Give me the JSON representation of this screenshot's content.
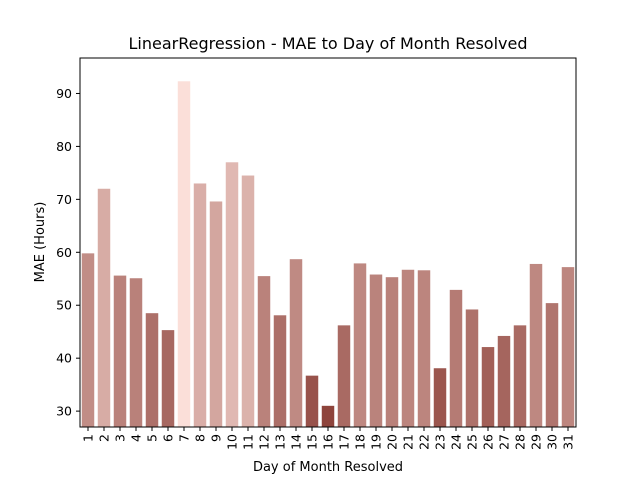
{
  "chart_data": {
    "type": "bar",
    "title": "LinearRegression - MAE to Day of Month Resolved",
    "xlabel": "Day of Month Resolved",
    "ylabel": "MAE (Hours)",
    "ylim": [
      27,
      96.7
    ],
    "yticks": [
      30,
      40,
      50,
      60,
      70,
      80,
      90
    ],
    "grid": false,
    "legend": "none",
    "categories": [
      "1",
      "2",
      "3",
      "4",
      "5",
      "6",
      "7",
      "8",
      "9",
      "10",
      "11",
      "12",
      "13",
      "14",
      "15",
      "16",
      "17",
      "18",
      "19",
      "20",
      "21",
      "22",
      "23",
      "24",
      "25",
      "26",
      "27",
      "28",
      "29",
      "30",
      "31"
    ],
    "values": [
      59.8,
      72.0,
      55.6,
      55.1,
      48.5,
      45.3,
      92.3,
      73.0,
      69.6,
      77.0,
      74.5,
      55.5,
      48.1,
      58.7,
      36.7,
      31.0,
      46.2,
      57.9,
      55.8,
      55.3,
      56.7,
      56.6,
      38.1,
      52.9,
      49.2,
      42.1,
      44.2,
      46.2,
      57.8,
      50.4,
      57.2
    ]
  }
}
